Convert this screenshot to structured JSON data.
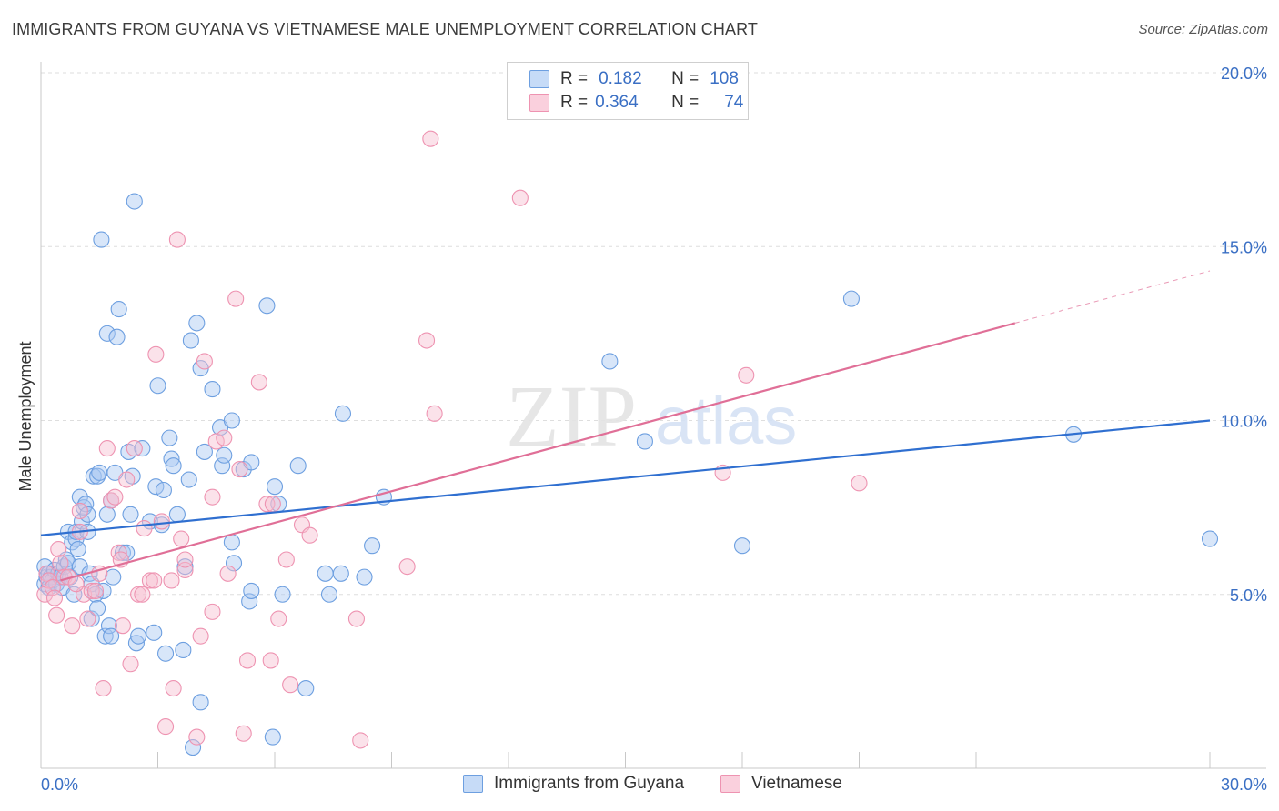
{
  "title": "IMMIGRANTS FROM GUYANA VS VIETNAMESE MALE UNEMPLOYMENT CORRELATION CHART",
  "source": "Source: ZipAtlas.com",
  "watermark": {
    "zip": "ZIP",
    "atlas": "atlas"
  },
  "legend": {
    "r_label": "R =",
    "n_label": "N =",
    "series": [
      {
        "name": "Immigrants from Guyana",
        "r": "0.182",
        "n": "108",
        "fill": "#a9c8f2",
        "stroke": "#6d9fe0"
      },
      {
        "name": "Vietnamese",
        "r": "0.364",
        "n": "74",
        "fill": "#f7bfd0",
        "stroke": "#ee93b1"
      }
    ]
  },
  "chart_data": {
    "type": "scatter",
    "title": "IMMIGRANTS FROM GUYANA VS VIETNAMESE MALE UNEMPLOYMENT CORRELATION CHART",
    "xlabel": "",
    "ylabel": "Male Unemployment",
    "xlim": [
      0,
      30
    ],
    "ylim": [
      0,
      20
    ],
    "x_tick_labels": [
      "0.0%",
      "30.0%"
    ],
    "y_ticks": [
      5,
      10,
      15,
      20
    ],
    "y_tick_labels": [
      "5.0%",
      "10.0%",
      "15.0%",
      "20.0%"
    ],
    "grid": true,
    "series": [
      {
        "name": "Immigrants from Guyana",
        "color": "#6d9fe0",
        "fill": "#a9c8f2",
        "trend": {
          "x0": 0,
          "y0": 6.7,
          "x1": 30,
          "y1": 10.0,
          "color": "#2f6fd0"
        },
        "points": [
          [
            0.1,
            5.3
          ],
          [
            0.1,
            5.8
          ],
          [
            0.15,
            5.5
          ],
          [
            0.2,
            5.2
          ],
          [
            0.2,
            5.6
          ],
          [
            0.25,
            5.5
          ],
          [
            0.3,
            5.4
          ],
          [
            0.35,
            5.7
          ],
          [
            0.4,
            5.3
          ],
          [
            0.45,
            5.6
          ],
          [
            0.5,
            5.5
          ],
          [
            0.55,
            5.2
          ],
          [
            0.6,
            5.8
          ],
          [
            0.65,
            6.0
          ],
          [
            0.7,
            5.9
          ],
          [
            0.75,
            5.5
          ],
          [
            0.7,
            6.8
          ],
          [
            0.8,
            6.5
          ],
          [
            0.9,
            6.6
          ],
          [
            0.85,
            5.0
          ],
          [
            0.9,
            6.8
          ],
          [
            0.95,
            6.3
          ],
          [
            1.0,
            5.8
          ],
          [
            1.0,
            7.8
          ],
          [
            1.05,
            7.1
          ],
          [
            1.1,
            7.5
          ],
          [
            1.15,
            7.6
          ],
          [
            1.2,
            7.3
          ],
          [
            1.2,
            6.8
          ],
          [
            1.25,
            5.6
          ],
          [
            1.3,
            5.3
          ],
          [
            1.3,
            4.3
          ],
          [
            1.35,
            8.4
          ],
          [
            1.4,
            5.0
          ],
          [
            1.45,
            8.4
          ],
          [
            1.5,
            8.5
          ],
          [
            1.45,
            4.6
          ],
          [
            1.55,
            15.2
          ],
          [
            1.6,
            5.1
          ],
          [
            1.65,
            3.8
          ],
          [
            1.7,
            12.5
          ],
          [
            1.7,
            7.3
          ],
          [
            1.75,
            4.1
          ],
          [
            1.8,
            3.8
          ],
          [
            1.8,
            7.7
          ],
          [
            1.85,
            5.5
          ],
          [
            1.9,
            8.5
          ],
          [
            1.95,
            12.4
          ],
          [
            2.0,
            13.2
          ],
          [
            2.1,
            6.2
          ],
          [
            2.2,
            6.2
          ],
          [
            2.25,
            9.1
          ],
          [
            2.3,
            7.3
          ],
          [
            2.35,
            8.4
          ],
          [
            2.4,
            16.3
          ],
          [
            2.45,
            3.6
          ],
          [
            2.5,
            3.8
          ],
          [
            2.6,
            9.2
          ],
          [
            2.8,
            7.1
          ],
          [
            2.9,
            3.9
          ],
          [
            2.95,
            8.1
          ],
          [
            3.0,
            11.0
          ],
          [
            3.1,
            7.0
          ],
          [
            3.15,
            8.0
          ],
          [
            3.2,
            3.3
          ],
          [
            3.3,
            9.5
          ],
          [
            3.35,
            8.9
          ],
          [
            3.4,
            8.7
          ],
          [
            3.5,
            7.3
          ],
          [
            3.65,
            3.4
          ],
          [
            3.7,
            5.8
          ],
          [
            3.8,
            8.3
          ],
          [
            3.85,
            12.3
          ],
          [
            3.9,
            0.6
          ],
          [
            4.0,
            12.8
          ],
          [
            4.1,
            11.5
          ],
          [
            4.1,
            1.9
          ],
          [
            4.2,
            9.1
          ],
          [
            4.4,
            10.9
          ],
          [
            4.6,
            9.8
          ],
          [
            4.65,
            8.7
          ],
          [
            4.7,
            9.0
          ],
          [
            4.9,
            10.0
          ],
          [
            4.95,
            5.9
          ],
          [
            4.9,
            6.5
          ],
          [
            5.2,
            8.6
          ],
          [
            5.35,
            4.8
          ],
          [
            5.4,
            8.8
          ],
          [
            5.4,
            5.1
          ],
          [
            5.8,
            13.3
          ],
          [
            5.95,
            0.9
          ],
          [
            6.0,
            8.1
          ],
          [
            6.1,
            7.6
          ],
          [
            6.2,
            5.0
          ],
          [
            6.6,
            8.7
          ],
          [
            6.8,
            2.3
          ],
          [
            7.3,
            5.6
          ],
          [
            7.4,
            5.0
          ],
          [
            7.7,
            5.6
          ],
          [
            7.75,
            10.2
          ],
          [
            8.3,
            5.5
          ],
          [
            8.5,
            6.4
          ],
          [
            8.8,
            7.8
          ],
          [
            14.6,
            11.7
          ],
          [
            15.5,
            9.4
          ],
          [
            18.0,
            6.4
          ],
          [
            20.8,
            13.5
          ],
          [
            26.5,
            9.6
          ],
          [
            30.0,
            6.6
          ]
        ]
      },
      {
        "name": "Vietnamese",
        "color": "#ee93b1",
        "fill": "#f7bfd0",
        "trend": {
          "x0": 0.5,
          "y0": 5.4,
          "x1": 25.0,
          "y1": 12.8,
          "x2": 30.0,
          "y2": 14.3,
          "color": "#e06f97"
        },
        "points": [
          [
            0.1,
            5.0
          ],
          [
            0.15,
            5.6
          ],
          [
            0.2,
            5.4
          ],
          [
            0.3,
            5.2
          ],
          [
            0.35,
            4.9
          ],
          [
            0.4,
            4.4
          ],
          [
            0.45,
            6.3
          ],
          [
            0.5,
            5.9
          ],
          [
            0.6,
            5.5
          ],
          [
            0.7,
            5.5
          ],
          [
            0.8,
            4.1
          ],
          [
            1.0,
            7.4
          ],
          [
            1.0,
            6.8
          ],
          [
            1.1,
            5.0
          ],
          [
            1.2,
            4.3
          ],
          [
            1.3,
            5.1
          ],
          [
            1.4,
            5.1
          ],
          [
            1.6,
            2.3
          ],
          [
            1.7,
            9.2
          ],
          [
            1.8,
            7.7
          ],
          [
            1.9,
            7.8
          ],
          [
            2.0,
            6.2
          ],
          [
            2.05,
            6.0
          ],
          [
            2.1,
            4.1
          ],
          [
            2.2,
            8.3
          ],
          [
            2.4,
            9.2
          ],
          [
            2.5,
            5.0
          ],
          [
            2.6,
            5.0
          ],
          [
            2.65,
            6.9
          ],
          [
            2.8,
            5.4
          ],
          [
            2.9,
            5.4
          ],
          [
            2.95,
            11.9
          ],
          [
            3.1,
            7.1
          ],
          [
            3.2,
            1.2
          ],
          [
            3.35,
            5.4
          ],
          [
            3.4,
            2.3
          ],
          [
            3.5,
            15.2
          ],
          [
            3.6,
            6.6
          ],
          [
            3.7,
            5.7
          ],
          [
            3.7,
            6.0
          ],
          [
            4.0,
            0.9
          ],
          [
            4.1,
            3.8
          ],
          [
            4.2,
            11.7
          ],
          [
            4.4,
            7.8
          ],
          [
            4.4,
            4.5
          ],
          [
            4.5,
            9.4
          ],
          [
            4.7,
            9.5
          ],
          [
            4.8,
            5.6
          ],
          [
            5.0,
            13.5
          ],
          [
            5.1,
            8.6
          ],
          [
            5.2,
            1.0
          ],
          [
            5.3,
            3.1
          ],
          [
            5.8,
            7.6
          ],
          [
            5.95,
            7.6
          ],
          [
            5.9,
            3.1
          ],
          [
            6.1,
            4.3
          ],
          [
            6.3,
            6.0
          ],
          [
            6.4,
            2.4
          ],
          [
            6.7,
            7.0
          ],
          [
            6.9,
            6.7
          ],
          [
            8.1,
            4.3
          ],
          [
            8.2,
            0.8
          ],
          [
            9.4,
            5.8
          ],
          [
            9.9,
            12.3
          ],
          [
            10.0,
            18.1
          ],
          [
            10.1,
            10.2
          ],
          [
            12.3,
            16.4
          ],
          [
            17.5,
            8.5
          ],
          [
            18.1,
            11.3
          ],
          [
            21.0,
            8.2
          ],
          [
            5.6,
            11.1
          ],
          [
            1.5,
            5.6
          ],
          [
            0.9,
            5.3
          ],
          [
            2.3,
            3.0
          ]
        ]
      }
    ]
  }
}
